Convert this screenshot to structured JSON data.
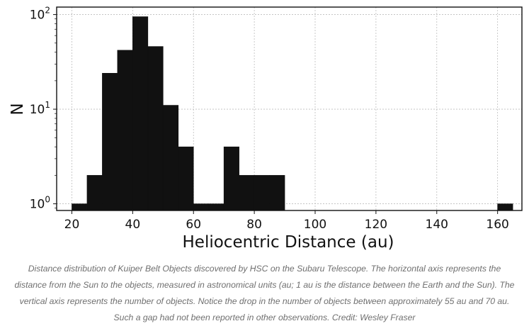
{
  "chart_data": {
    "type": "bar",
    "subtype": "histogram",
    "xlabel": "Heliocentric Distance (au)",
    "ylabel": "N",
    "yscale": "log",
    "xlim": [
      15,
      168
    ],
    "ylim": [
      0.85,
      120
    ],
    "grid": true,
    "xticks": [
      20,
      40,
      60,
      80,
      100,
      120,
      140,
      160
    ],
    "xtick_labels": [
      "20",
      "40",
      "60",
      "80",
      "100",
      "120",
      "140",
      "160"
    ],
    "yticks": [
      1,
      10,
      100
    ],
    "ytick_labels": [
      {
        "base": "10",
        "exp": "0"
      },
      {
        "base": "10",
        "exp": "1"
      },
      {
        "base": "10",
        "exp": "2"
      }
    ],
    "bins": [
      {
        "x0": 20,
        "x1": 25,
        "count": 1
      },
      {
        "x0": 25,
        "x1": 30,
        "count": 2
      },
      {
        "x0": 30,
        "x1": 35,
        "count": 24
      },
      {
        "x0": 35,
        "x1": 40,
        "count": 42
      },
      {
        "x0": 40,
        "x1": 45,
        "count": 95
      },
      {
        "x0": 45,
        "x1": 50,
        "count": 46
      },
      {
        "x0": 50,
        "x1": 55,
        "count": 11
      },
      {
        "x0": 55,
        "x1": 60,
        "count": 4
      },
      {
        "x0": 60,
        "x1": 65,
        "count": 1
      },
      {
        "x0": 65,
        "x1": 70,
        "count": 1
      },
      {
        "x0": 70,
        "x1": 75,
        "count": 4
      },
      {
        "x0": 75,
        "x1": 80,
        "count": 2
      },
      {
        "x0": 80,
        "x1": 85,
        "count": 2
      },
      {
        "x0": 85,
        "x1": 90,
        "count": 2
      },
      {
        "x0": 160,
        "x1": 165,
        "count": 1
      }
    ],
    "bar_color": "#111111"
  },
  "caption": "Distance distribution of Kuiper Belt Objects discovered by HSC on the Subaru Telescope. The horizontal axis represents the distance from the Sun to the objects, measured in astronomical units (au; 1 au is the distance between the Earth and the Sun). The vertical axis represents the number of objects. Notice the drop in the number of objects between approximately 55 au and 70 au. Such a gap had not been reported in other observations. Credit: Wesley Fraser"
}
